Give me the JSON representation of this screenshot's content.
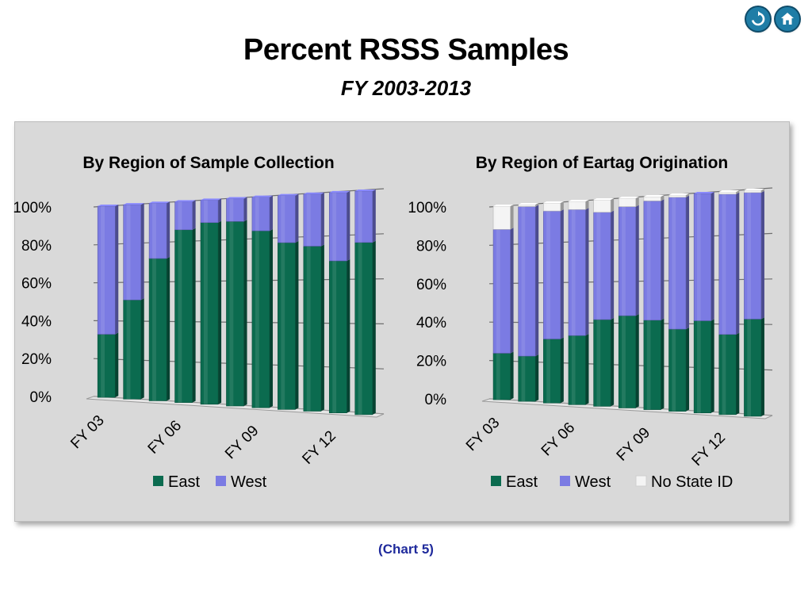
{
  "header": {
    "title": "Percent RSSS Samples",
    "subtitle": "FY 2003-2013",
    "caption": "(Chart 5)",
    "nav_icons": [
      "refresh-icon",
      "home-icon"
    ]
  },
  "colors": {
    "east": "#0b6b4f",
    "west": "#7b7be3",
    "no_state_id": "#f4f4f4",
    "panel": "#d9d9d9",
    "caption": "#1f2a9c"
  },
  "chart_data": [
    {
      "type": "bar",
      "stacked": true,
      "title": "By Region of Sample Collection",
      "categories": [
        "FY 03",
        "FY 04",
        "FY 05",
        "FY 06",
        "FY 07",
        "FY 08",
        "FY 09",
        "FY 10",
        "FY 11",
        "FY 12",
        "FY 13"
      ],
      "tick_labels": [
        "FY 03",
        "FY 06",
        "FY 09",
        "FY 12"
      ],
      "series": [
        {
          "name": "East",
          "values": [
            33,
            51,
            72,
            86,
            89,
            89,
            84,
            78,
            76,
            69,
            77
          ]
        },
        {
          "name": "West",
          "values": [
            67,
            49,
            28,
            14,
            11,
            11,
            16,
            22,
            24,
            31,
            23
          ]
        }
      ],
      "yticks": [
        "0%",
        "20%",
        "40%",
        "60%",
        "80%",
        "100%"
      ],
      "ylim": [
        0,
        100
      ],
      "grid": true,
      "legend": "bottom"
    },
    {
      "type": "bar",
      "stacked": true,
      "title": "By Region of Eartag Origination",
      "categories": [
        "FY 03",
        "FY 04",
        "FY 05",
        "FY 06",
        "FY 07",
        "FY 08",
        "FY 09",
        "FY 10",
        "FY 11",
        "FY 12",
        "FY 13"
      ],
      "tick_labels": [
        "FY 03",
        "FY 06",
        "FY 09",
        "FY 12"
      ],
      "series": [
        {
          "name": "East",
          "values": [
            24,
            23,
            32,
            34,
            42,
            44,
            42,
            38,
            42,
            36,
            43
          ]
        },
        {
          "name": "West",
          "values": [
            64,
            76,
            64,
            62,
            52,
            52,
            56,
            61,
            58,
            63,
            56
          ]
        },
        {
          "name": "No State ID",
          "values": [
            12,
            1,
            4,
            4,
            6,
            4,
            2,
            1,
            0,
            1,
            1
          ]
        }
      ],
      "yticks": [
        "0%",
        "20%",
        "40%",
        "60%",
        "80%",
        "100%"
      ],
      "ylim": [
        0,
        100
      ],
      "grid": true,
      "legend": "bottom"
    }
  ]
}
